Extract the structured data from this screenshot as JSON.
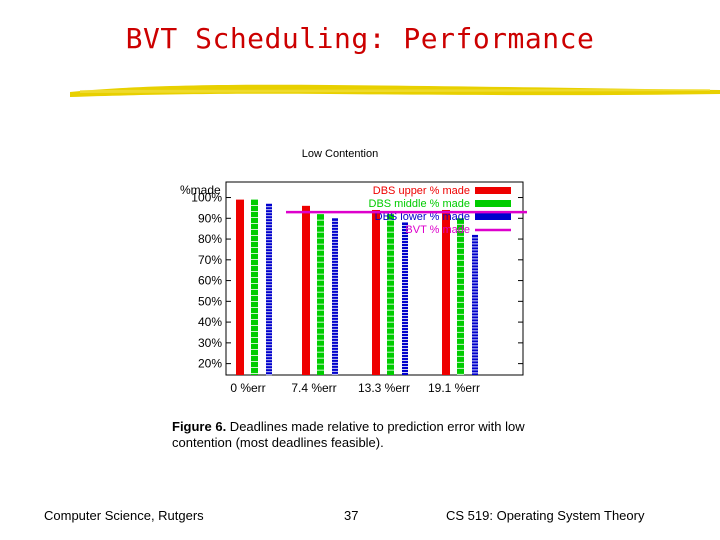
{
  "slide": {
    "title": "BVT Scheduling: Performance",
    "footer_left": "Computer Science, Rutgers",
    "page_number": "37",
    "footer_right": "CS 519: Operating System Theory"
  },
  "figure": {
    "caption_label": "Figure 6.",
    "caption_text": " Deadlines made relative to prediction error with low contention (most deadlines feasible)."
  },
  "colors": {
    "title": "#cc0000",
    "underline": "#e8d000",
    "upper": "#ee0000",
    "middle": "#00cc00",
    "lower": "#0000cc",
    "bvt": "#dd00cc"
  },
  "chart_data": {
    "type": "bar",
    "title": "Low Contention",
    "ylabel": "%made",
    "xlabel": "",
    "ylim": [
      15,
      107
    ],
    "yticks": [
      "100%",
      "90%",
      "80%",
      "70%",
      "60%",
      "50%",
      "40%",
      "30%",
      "20%"
    ],
    "ytick_values": [
      100,
      90,
      80,
      70,
      60,
      50,
      40,
      30,
      20
    ],
    "categories": [
      "0 %err",
      "7.4 %err",
      "13.3 %err",
      "19.1 %err"
    ],
    "series": [
      {
        "name": "DBS upper % made",
        "values": [
          99,
          96,
          94,
          94
        ]
      },
      {
        "name": "DBS middle % made",
        "values": [
          99,
          92,
          92,
          90
        ]
      },
      {
        "name": "DBS lower % made",
        "values": [
          97,
          90,
          88,
          82
        ]
      }
    ],
    "reference_line": {
      "name": "BVT % made",
      "value": 93
    },
    "legend_position": "top-right",
    "grid": false
  }
}
